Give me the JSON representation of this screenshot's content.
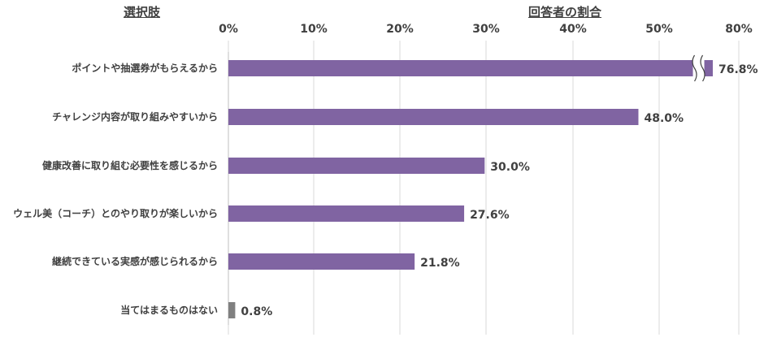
{
  "headers": {
    "left": "選択肢",
    "right": "回答者の割合"
  },
  "colors": {
    "bar": "#8064A2",
    "bar_none": "#808080",
    "grid": "#d9d9d9",
    "text": "#404040"
  },
  "chart_data": {
    "type": "bar",
    "orientation": "horizontal",
    "categories": [
      "ポイントや抽選券がもらえるから",
      "チャレンジ内容が取り組みやすいから",
      "健康改善に取り組む必要性を感じるから",
      "ウェル美（コーチ）とのやり取りが楽しいから",
      "継続できている実感が感じられるから",
      "当てはまるものはない"
    ],
    "values": [
      76.8,
      48.0,
      30.0,
      27.6,
      21.8,
      0.8
    ],
    "value_labels": [
      "76.8%",
      "48.0%",
      "30.0%",
      "27.6%",
      "21.8%",
      "0.8%"
    ],
    "xticks": [
      0,
      10,
      20,
      30,
      40,
      50,
      80
    ],
    "xtick_labels": [
      "0%",
      "10%",
      "20%",
      "30%",
      "40%",
      "50%",
      "80%"
    ],
    "axis_break": [
      54,
      74
    ],
    "xlim": [
      0,
      80
    ],
    "grid": true
  }
}
